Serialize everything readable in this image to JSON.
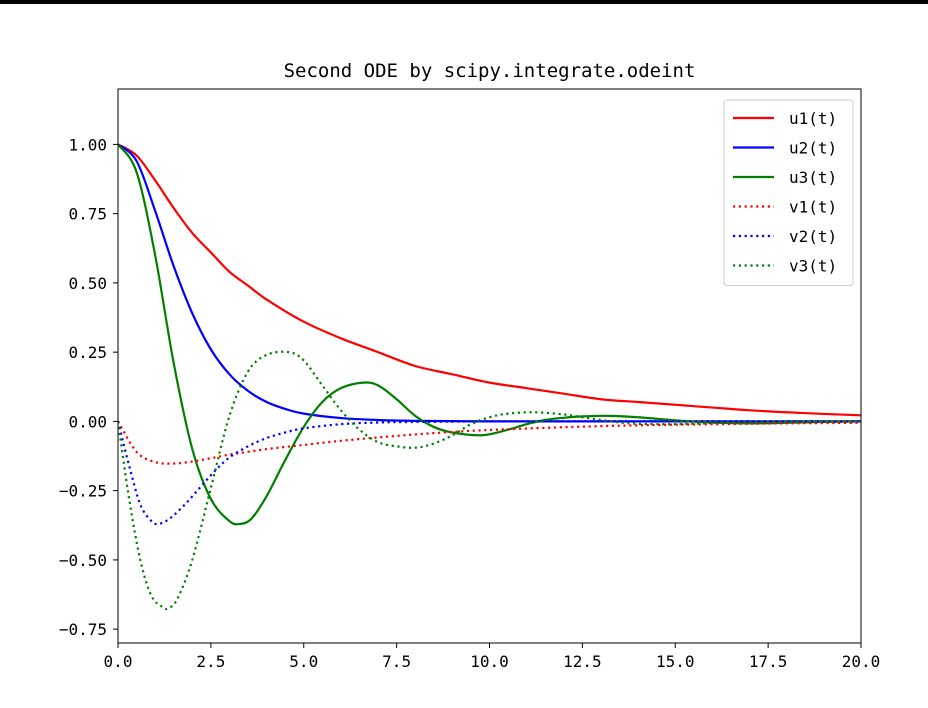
{
  "chart_data": {
    "type": "line",
    "title": "Second ODE by scipy.integrate.odeint",
    "xlabel": "",
    "ylabel": "",
    "xlim": [
      0,
      20
    ],
    "ylim": [
      -0.8,
      1.2
    ],
    "grid": false,
    "legend_position": "top-right",
    "x_ticks": [
      0,
      2.5,
      5,
      7.5,
      10,
      12.5,
      15,
      17.5,
      20
    ],
    "x_tick_labels": [
      "0.0",
      "2.5",
      "5.0",
      "7.5",
      "10.0",
      "12.5",
      "15.0",
      "17.5",
      "20.0"
    ],
    "y_ticks": [
      1.0,
      0.75,
      0.5,
      0.25,
      0.0,
      -0.25,
      -0.5,
      -0.75
    ],
    "y_tick_labels": [
      "1.00",
      "0.75",
      "0.50",
      "0.25",
      "0.00",
      "−0.25",
      "−0.50",
      "−0.75"
    ],
    "series": [
      {
        "name": "u1(t)",
        "color": "#ff0000",
        "style": "solid",
        "x": [
          0,
          0.5,
          1,
          1.5,
          2,
          2.5,
          3,
          3.5,
          4,
          5,
          6,
          7,
          8,
          9,
          10,
          11,
          12,
          13,
          14,
          15,
          16,
          17,
          18,
          19,
          20
        ],
        "y": [
          1.0,
          0.96,
          0.87,
          0.77,
          0.68,
          0.61,
          0.54,
          0.49,
          0.44,
          0.36,
          0.3,
          0.25,
          0.2,
          0.17,
          0.14,
          0.12,
          0.1,
          0.08,
          0.07,
          0.06,
          0.05,
          0.04,
          0.033,
          0.027,
          0.022
        ]
      },
      {
        "name": "u2(t)",
        "color": "#0000ff",
        "style": "solid",
        "x": [
          0,
          0.5,
          1,
          1.5,
          2,
          2.5,
          3,
          3.5,
          4,
          4.5,
          5,
          6,
          7,
          8,
          9,
          10,
          12,
          14,
          16,
          18,
          20
        ],
        "y": [
          1.0,
          0.94,
          0.76,
          0.56,
          0.39,
          0.26,
          0.17,
          0.11,
          0.07,
          0.045,
          0.028,
          0.012,
          0.005,
          0.002,
          0.001,
          0.0,
          0.0,
          0.0,
          0.0,
          0.0,
          0.0
        ]
      },
      {
        "name": "u3(t)",
        "color": "#008000",
        "style": "solid",
        "x": [
          0,
          0.5,
          1,
          1.5,
          2,
          2.5,
          3,
          3.3,
          3.6,
          4,
          4.5,
          5,
          5.5,
          6,
          6.6,
          7,
          7.5,
          8,
          8.5,
          9,
          9.8,
          10.5,
          11,
          11.5,
          12,
          12.5,
          13.2,
          14,
          15,
          16,
          17,
          18,
          19,
          20
        ],
        "y": [
          1.0,
          0.9,
          0.6,
          0.21,
          -0.1,
          -0.28,
          -0.36,
          -0.37,
          -0.35,
          -0.27,
          -0.14,
          -0.02,
          0.07,
          0.12,
          0.14,
          0.13,
          0.08,
          0.02,
          -0.02,
          -0.04,
          -0.05,
          -0.03,
          -0.01,
          0.005,
          0.013,
          0.018,
          0.02,
          0.015,
          0.004,
          -0.004,
          -0.007,
          -0.005,
          -0.002,
          0.0
        ]
      },
      {
        "name": "v1(t)",
        "color": "#ff0000",
        "style": "dotted",
        "x": [
          0,
          0.5,
          1,
          1.5,
          2,
          2.5,
          3,
          4,
          5,
          6,
          7,
          8,
          9,
          10,
          12,
          14,
          16,
          18,
          20
        ],
        "y": [
          0.0,
          -0.11,
          -0.147,
          -0.152,
          -0.145,
          -0.133,
          -0.12,
          -0.1,
          -0.085,
          -0.07,
          -0.058,
          -0.047,
          -0.038,
          -0.031,
          -0.021,
          -0.014,
          -0.01,
          -0.007,
          -0.005
        ]
      },
      {
        "name": "v2(t)",
        "color": "#0000ff",
        "style": "dotted",
        "x": [
          0,
          0.3,
          0.6,
          0.9,
          1.1,
          1.4,
          1.8,
          2.2,
          2.6,
          3,
          3.5,
          4,
          4.5,
          5,
          6,
          7,
          8,
          10,
          12,
          16,
          20
        ],
        "y": [
          0.0,
          -0.16,
          -0.3,
          -0.36,
          -0.37,
          -0.35,
          -0.3,
          -0.24,
          -0.18,
          -0.13,
          -0.09,
          -0.06,
          -0.04,
          -0.025,
          -0.01,
          -0.004,
          -0.002,
          0.0,
          0.0,
          0.0,
          0.0
        ]
      },
      {
        "name": "v3(t)",
        "color": "#008000",
        "style": "dotted",
        "x": [
          0,
          0.3,
          0.6,
          0.9,
          1.2,
          1.35,
          1.6,
          2,
          2.5,
          3,
          3.5,
          4,
          4.6,
          5,
          5.5,
          6,
          6.5,
          7,
          7.5,
          8,
          8.5,
          9,
          9.5,
          10,
          10.5,
          11.2,
          12,
          12.5,
          13,
          13.5,
          14,
          15,
          16,
          17,
          18,
          19,
          20
        ],
        "y": [
          0.0,
          -0.28,
          -0.5,
          -0.63,
          -0.67,
          -0.675,
          -0.64,
          -0.5,
          -0.24,
          0.02,
          0.18,
          0.24,
          0.25,
          0.22,
          0.13,
          0.04,
          -0.03,
          -0.075,
          -0.09,
          -0.095,
          -0.08,
          -0.05,
          -0.01,
          0.015,
          0.028,
          0.033,
          0.025,
          0.015,
          0.005,
          -0.004,
          -0.009,
          -0.01,
          -0.006,
          -0.002,
          0.0,
          0.0,
          0.0
        ]
      }
    ]
  }
}
